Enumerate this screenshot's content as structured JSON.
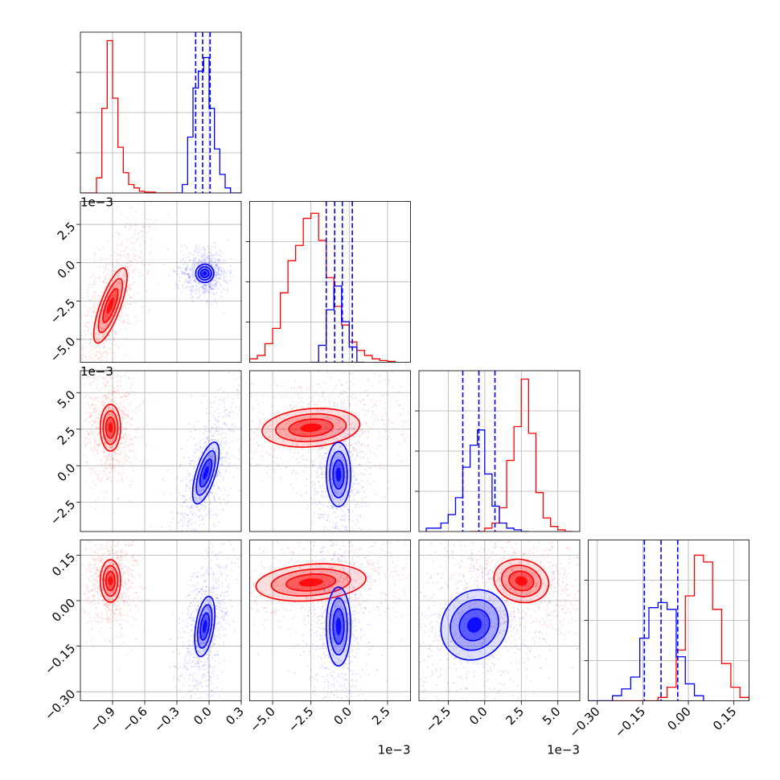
{
  "chart_data": {
    "type": "corner",
    "grid": true,
    "colors": {
      "red": "#ff0000",
      "blue": "#0000ff"
    },
    "params": [
      {
        "range": [
          -1.2,
          0.3
        ],
        "ticks": [
          -0.9,
          -0.6,
          -0.3,
          0.0,
          0.3
        ],
        "tick_labels": [
          "−0.9",
          "−0.6",
          "−0.3",
          "0.0",
          "0.3"
        ],
        "offset": ""
      },
      {
        "range": [
          -6.5,
          4.0
        ],
        "ticks": [
          -5.0,
          -2.5,
          0.0,
          2.5
        ],
        "tick_labels": [
          "−5.0",
          "−2.5",
          "0.0",
          "2.5"
        ],
        "offset": "1e−3"
      },
      {
        "range": [
          -4.5,
          6.5
        ],
        "ticks": [
          -2.5,
          0.0,
          2.5,
          5.0
        ],
        "tick_labels": [
          "−2.5",
          "0.0",
          "2.5",
          "5.0"
        ],
        "offset": "1e−3"
      },
      {
        "range": [
          -0.33,
          0.2
        ],
        "ticks": [
          -0.3,
          -0.15,
          0.0,
          0.15
        ],
        "tick_labels": [
          "−0.30",
          "−0.15",
          "0.00",
          "0.15"
        ],
        "offset": ""
      }
    ],
    "histograms": [
      {
        "blue_quantiles": [
          -0.125,
          -0.06,
          0.01
        ],
        "red": {
          "edges": [
            -1.2,
            -1.05,
            -1.0,
            -0.95,
            -0.9,
            -0.85,
            -0.8,
            -0.75,
            -0.7,
            -0.65,
            -0.6,
            -0.5,
            -0.4,
            -0.3
          ],
          "counts": [
            0.0,
            0.09,
            0.5,
            0.9,
            0.56,
            0.27,
            0.12,
            0.05,
            0.03,
            0.01,
            0.005,
            0.0,
            0.0
          ]
        },
        "blue": {
          "edges": [
            -0.3,
            -0.25,
            -0.2,
            -0.15,
            -0.1,
            -0.05,
            0.0,
            0.05,
            0.1,
            0.15,
            0.2,
            0.3
          ],
          "counts": [
            0.0,
            0.05,
            0.33,
            0.62,
            0.72,
            0.8,
            0.5,
            0.26,
            0.11,
            0.03,
            0.0
          ]
        }
      },
      {
        "blue_quantiles": [
          -1.5,
          -0.95,
          -0.45,
          0.2
        ],
        "red": {
          "edges": [
            -6.5,
            -6.0,
            -5.5,
            -5.0,
            -4.5,
            -4.0,
            -3.5,
            -3.0,
            -2.5,
            -2.0,
            -1.5,
            -1.0,
            -0.5,
            0.0,
            0.5,
            1.0,
            1.5,
            2.0,
            2.5,
            3.0
          ],
          "counts": [
            0.02,
            0.04,
            0.11,
            0.2,
            0.41,
            0.6,
            0.69,
            0.85,
            0.88,
            0.72,
            0.5,
            0.33,
            0.22,
            0.12,
            0.07,
            0.04,
            0.02,
            0.01,
            0.005
          ]
        },
        "blue": {
          "edges": [
            -2.5,
            -2.0,
            -1.5,
            -1.0,
            -0.5,
            0.0,
            0.5,
            1.0
          ],
          "counts": [
            0.0,
            0.1,
            0.31,
            0.45,
            0.24,
            0.09,
            0.0
          ]
        }
      },
      {
        "blue_quantiles": [
          -1.5,
          -0.4,
          0.7
        ],
        "red": {
          "edges": [
            -1.0,
            0.0,
            0.5,
            1.0,
            1.5,
            2.0,
            2.5,
            3.0,
            3.5,
            4.0,
            4.5,
            5.0,
            5.5,
            6.0
          ],
          "counts": [
            0.0,
            0.02,
            0.05,
            0.14,
            0.42,
            0.62,
            0.9,
            0.58,
            0.23,
            0.08,
            0.03,
            0.01,
            0.0
          ]
        },
        "blue": {
          "edges": [
            -4.0,
            -3.0,
            -2.5,
            -2.0,
            -1.5,
            -1.0,
            -0.5,
            0.0,
            0.5,
            1.0,
            1.5,
            2.0,
            2.5,
            3.0
          ],
          "counts": [
            0.02,
            0.05,
            0.1,
            0.2,
            0.38,
            0.51,
            0.6,
            0.34,
            0.15,
            0.05,
            0.02,
            0.01,
            0.0
          ]
        }
      },
      {
        "blue_quantiles": [
          -0.145,
          -0.09,
          -0.035
        ],
        "red": {
          "edges": [
            -0.3,
            -0.1,
            -0.07,
            -0.04,
            -0.01,
            0.02,
            0.05,
            0.08,
            0.11,
            0.14,
            0.17,
            0.2
          ],
          "counts": [
            0.0,
            0.02,
            0.08,
            0.3,
            0.62,
            0.86,
            0.82,
            0.54,
            0.22,
            0.08,
            0.02
          ]
        },
        "blue": {
          "edges": [
            -0.33,
            -0.25,
            -0.22,
            -0.19,
            -0.16,
            -0.13,
            -0.1,
            -0.07,
            -0.04,
            -0.01,
            0.02,
            0.05
          ],
          "counts": [
            0.0,
            0.03,
            0.07,
            0.14,
            0.37,
            0.55,
            0.58,
            0.54,
            0.26,
            0.1,
            0.03
          ]
        }
      }
    ],
    "clusters": {
      "red": {
        "mean": [
          -0.92,
          -2.7,
          2.6,
          0.065
        ],
        "std": [
          0.05,
          1.5,
          0.8,
          0.035
        ]
      },
      "blue": {
        "mean": [
          -0.04,
          -0.7,
          -0.4,
          -0.085
        ],
        "std": [
          0.06,
          0.45,
          1.1,
          0.045
        ]
      }
    },
    "contours": [
      {
        "i": 1,
        "j": 0,
        "red": {
          "cx": -0.92,
          "cy": -2.8,
          "rx": 0.095,
          "ry": 2.6,
          "rot": 0.35
        },
        "blue": {
          "cx": -0.04,
          "cy": -0.7,
          "rx": 0.085,
          "ry": 0.6,
          "rot": 0.0
        }
      },
      {
        "i": 2,
        "j": 0,
        "red": {
          "cx": -0.92,
          "cy": 2.6,
          "rx": 0.095,
          "ry": 1.6,
          "rot": 0.0
        },
        "blue": {
          "cx": -0.03,
          "cy": -0.5,
          "rx": 0.09,
          "ry": 2.2,
          "rot": 0.3
        }
      },
      {
        "i": 3,
        "j": 0,
        "red": {
          "cx": -0.92,
          "cy": 0.065,
          "rx": 0.095,
          "ry": 0.07,
          "rot": 0.0
        },
        "blue": {
          "cx": -0.04,
          "cy": -0.085,
          "rx": 0.085,
          "ry": 0.1,
          "rot": 0.15
        }
      },
      {
        "i": 2,
        "j": 1,
        "red": {
          "cx": -2.5,
          "cy": 2.6,
          "rx": 3.2,
          "ry": 1.3,
          "rot": -0.08
        },
        "blue": {
          "cx": -0.7,
          "cy": -0.6,
          "rx": 0.8,
          "ry": 2.2,
          "rot": 0.0
        }
      },
      {
        "i": 3,
        "j": 1,
        "red": {
          "cx": -2.5,
          "cy": 0.06,
          "rx": 3.6,
          "ry": 0.06,
          "rot": -0.08
        },
        "blue": {
          "cx": -0.7,
          "cy": -0.085,
          "rx": 0.8,
          "ry": 0.13,
          "rot": 0.0
        }
      },
      {
        "i": 3,
        "j": 2,
        "red": {
          "cx": 2.5,
          "cy": 0.065,
          "rx": 1.9,
          "ry": 0.07,
          "rot": 0.25
        },
        "blue": {
          "cx": -0.7,
          "cy": -0.08,
          "rx": 2.2,
          "ry": 0.12,
          "rot": 0.6
        }
      }
    ]
  }
}
